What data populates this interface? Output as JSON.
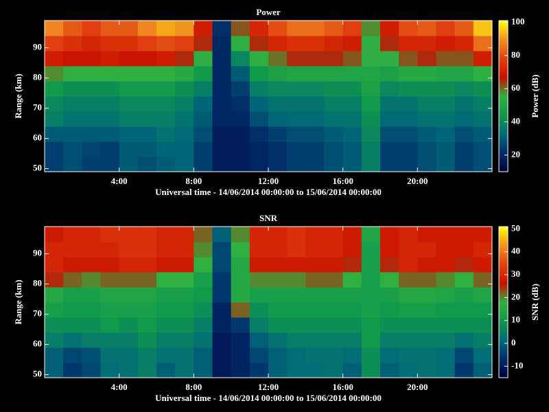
{
  "chart_data": [
    {
      "type": "heatmap",
      "title": "Power",
      "xlabel": "Universal time - 14/06/2014 00:00:00 to 15/06/2014 00:00:00",
      "ylabel": "Range (km)",
      "colorbar_label": "Power (dB)",
      "x": [
        0.5,
        1.5,
        2.5,
        3.5,
        4.5,
        5.5,
        6.5,
        7.5,
        8.5,
        9.5,
        10.5,
        11.5,
        12.5,
        13.5,
        14.5,
        15.5,
        16.5,
        17.5,
        18.5,
        19.5,
        20.5,
        21.5,
        22.5,
        23.5
      ],
      "y": [
        51.5,
        56.5,
        61.5,
        66.5,
        71.5,
        76.5,
        81.5,
        86.5,
        91.5,
        96.5
      ],
      "xlim": [
        0,
        24
      ],
      "ylim": [
        49,
        99
      ],
      "xticks": [
        {
          "value": 4,
          "label": "4:00"
        },
        {
          "value": 8,
          "label": "8:00"
        },
        {
          "value": 12,
          "label": "12:00"
        },
        {
          "value": 16,
          "label": "16:00"
        },
        {
          "value": 20,
          "label": "20:00"
        }
      ],
      "yticks": [
        50,
        60,
        70,
        80,
        90
      ],
      "clim": [
        10,
        101
      ],
      "cticks": [
        20,
        40,
        60,
        80,
        100
      ],
      "colormap": [
        "#000038",
        "#002a6a",
        "#006a78",
        "#10984c",
        "#30b040",
        "#c81000",
        "#e04010",
        "#f09020",
        "#ffff00"
      ],
      "z": [
        [
          25,
          28,
          25,
          25,
          30,
          28,
          30,
          32,
          25,
          18,
          18,
          20,
          22,
          25,
          25,
          28,
          30,
          38,
          25,
          25,
          28,
          30,
          25,
          28
        ],
        [
          25,
          28,
          26,
          25,
          30,
          30,
          32,
          32,
          25,
          18,
          18,
          20,
          22,
          25,
          25,
          28,
          30,
          38,
          25,
          25,
          28,
          30,
          25,
          28
        ],
        [
          30,
          30,
          30,
          30,
          32,
          32,
          35,
          33,
          28,
          18,
          18,
          22,
          25,
          28,
          28,
          30,
          32,
          40,
          28,
          28,
          30,
          32,
          28,
          30
        ],
        [
          38,
          35,
          35,
          35,
          38,
          38,
          38,
          35,
          30,
          20,
          20,
          28,
          32,
          33,
          33,
          35,
          35,
          42,
          33,
          33,
          35,
          35,
          33,
          35
        ],
        [
          40,
          38,
          38,
          38,
          40,
          40,
          40,
          38,
          32,
          20,
          22,
          32,
          35,
          35,
          35,
          38,
          38,
          45,
          35,
          35,
          38,
          38,
          35,
          38
        ],
        [
          45,
          42,
          42,
          42,
          45,
          45,
          45,
          42,
          38,
          20,
          25,
          38,
          40,
          40,
          40,
          42,
          42,
          48,
          40,
          42,
          42,
          42,
          40,
          42
        ],
        [
          58,
          55,
          55,
          55,
          55,
          55,
          55,
          52,
          45,
          20,
          30,
          45,
          48,
          50,
          50,
          50,
          50,
          50,
          48,
          52,
          52,
          50,
          50,
          55
        ],
        [
          70,
          68,
          68,
          70,
          68,
          68,
          70,
          65,
          55,
          20,
          40,
          55,
          60,
          65,
          65,
          65,
          62,
          55,
          55,
          62,
          65,
          62,
          62,
          70
        ],
        [
          78,
          75,
          72,
          75,
          75,
          78,
          80,
          78,
          65,
          20,
          55,
          65,
          72,
          75,
          75,
          72,
          70,
          55,
          65,
          72,
          72,
          70,
          72,
          85
        ],
        [
          88,
          82,
          78,
          82,
          82,
          88,
          92,
          90,
          70,
          22,
          62,
          72,
          80,
          85,
          85,
          82,
          78,
          58,
          70,
          80,
          82,
          78,
          82,
          95
        ]
      ]
    },
    {
      "type": "heatmap",
      "title": "SNR",
      "xlabel": "Universal time - 14/06/2014 00:00:00 to 15/06/2014 00:00:00",
      "ylabel": "Range (km)",
      "colorbar_label": "SNR (dB)",
      "x": [
        0.5,
        1.5,
        2.5,
        3.5,
        4.5,
        5.5,
        6.5,
        7.5,
        8.5,
        9.5,
        10.5,
        11.5,
        12.5,
        13.5,
        14.5,
        15.5,
        16.5,
        17.5,
        18.5,
        19.5,
        20.5,
        21.5,
        22.5,
        23.5
      ],
      "y": [
        51.5,
        56.5,
        61.5,
        66.5,
        71.5,
        76.5,
        81.5,
        86.5,
        91.5,
        96.5
      ],
      "xlim": [
        0,
        24
      ],
      "ylim": [
        49,
        99
      ],
      "xticks": [
        {
          "value": 4,
          "label": "4:00"
        },
        {
          "value": 8,
          "label": "8:00"
        },
        {
          "value": 12,
          "label": "12:00"
        },
        {
          "value": 16,
          "label": "16:00"
        },
        {
          "value": 20,
          "label": "20:00"
        }
      ],
      "yticks": [
        50,
        60,
        70,
        80,
        90
      ],
      "clim": [
        -15,
        51
      ],
      "cticks": [
        -10,
        0,
        10,
        20,
        30,
        40,
        50
      ],
      "colormap": [
        "#000038",
        "#002a6a",
        "#006a78",
        "#10984c",
        "#30b040",
        "#c81000",
        "#e04010",
        "#f09020",
        "#ffff00"
      ],
      "z": [
        [
          0,
          -5,
          -3,
          2,
          3,
          5,
          0,
          3,
          0,
          -10,
          -8,
          -5,
          0,
          2,
          2,
          3,
          0,
          8,
          0,
          2,
          3,
          2,
          -5,
          0
        ],
        [
          0,
          -3,
          -2,
          3,
          3,
          5,
          3,
          3,
          0,
          -10,
          -8,
          -3,
          0,
          2,
          3,
          3,
          2,
          8,
          2,
          3,
          3,
          2,
          -3,
          2
        ],
        [
          5,
          3,
          5,
          5,
          5,
          8,
          5,
          5,
          3,
          -10,
          -8,
          0,
          3,
          5,
          5,
          5,
          5,
          10,
          5,
          5,
          5,
          5,
          3,
          5
        ],
        [
          8,
          8,
          8,
          10,
          8,
          10,
          8,
          8,
          5,
          -8,
          -5,
          5,
          8,
          8,
          8,
          8,
          8,
          10,
          8,
          8,
          8,
          8,
          8,
          8
        ],
        [
          12,
          10,
          10,
          12,
          12,
          12,
          10,
          10,
          8,
          -8,
          22,
          8,
          10,
          10,
          10,
          10,
          10,
          12,
          10,
          12,
          12,
          10,
          10,
          10
        ],
        [
          15,
          12,
          12,
          14,
          14,
          14,
          12,
          12,
          10,
          -5,
          15,
          12,
          12,
          12,
          12,
          12,
          12,
          12,
          12,
          15,
          15,
          14,
          12,
          14
        ],
        [
          25,
          22,
          20,
          22,
          22,
          22,
          18,
          18,
          12,
          -5,
          15,
          20,
          20,
          20,
          22,
          22,
          18,
          12,
          18,
          22,
          22,
          20,
          18,
          22
        ],
        [
          30,
          28,
          28,
          28,
          30,
          30,
          28,
          28,
          18,
          -3,
          15,
          28,
          28,
          28,
          28,
          28,
          25,
          12,
          25,
          30,
          28,
          28,
          25,
          28
        ],
        [
          30,
          30,
          30,
          30,
          32,
          32,
          30,
          30,
          20,
          -3,
          18,
          30,
          30,
          32,
          30,
          30,
          28,
          12,
          28,
          30,
          30,
          28,
          28,
          30
        ],
        [
          28,
          30,
          30,
          32,
          32,
          32,
          30,
          30,
          22,
          0,
          20,
          30,
          30,
          32,
          30,
          30,
          28,
          14,
          28,
          30,
          28,
          28,
          28,
          28
        ]
      ]
    }
  ]
}
